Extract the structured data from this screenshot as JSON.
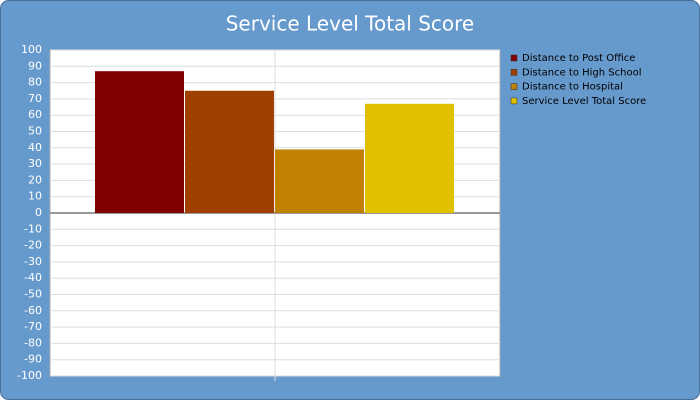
{
  "chart_data": {
    "type": "bar",
    "title": "Service Level Total Score",
    "categories": [
      null
    ],
    "series": [
      {
        "name": "Distance to Post Office",
        "color": "#800000",
        "values": [
          87
        ]
      },
      {
        "name": "Distance to High School",
        "color": "#a04000",
        "values": [
          75
        ]
      },
      {
        "name": "Distance to Hospital",
        "color": "#c08000",
        "values": [
          39
        ]
      },
      {
        "name": "Service Level Total Score",
        "color": "#e0c000",
        "values": [
          67
        ]
      }
    ],
    "ylim": [
      -100,
      100
    ],
    "yticks": [
      -100,
      -90,
      -80,
      -70,
      -60,
      -50,
      -40,
      -30,
      -20,
      -10,
      0,
      10,
      20,
      30,
      40,
      50,
      60,
      70,
      80,
      90,
      100
    ],
    "grid": true,
    "legend": "right"
  }
}
